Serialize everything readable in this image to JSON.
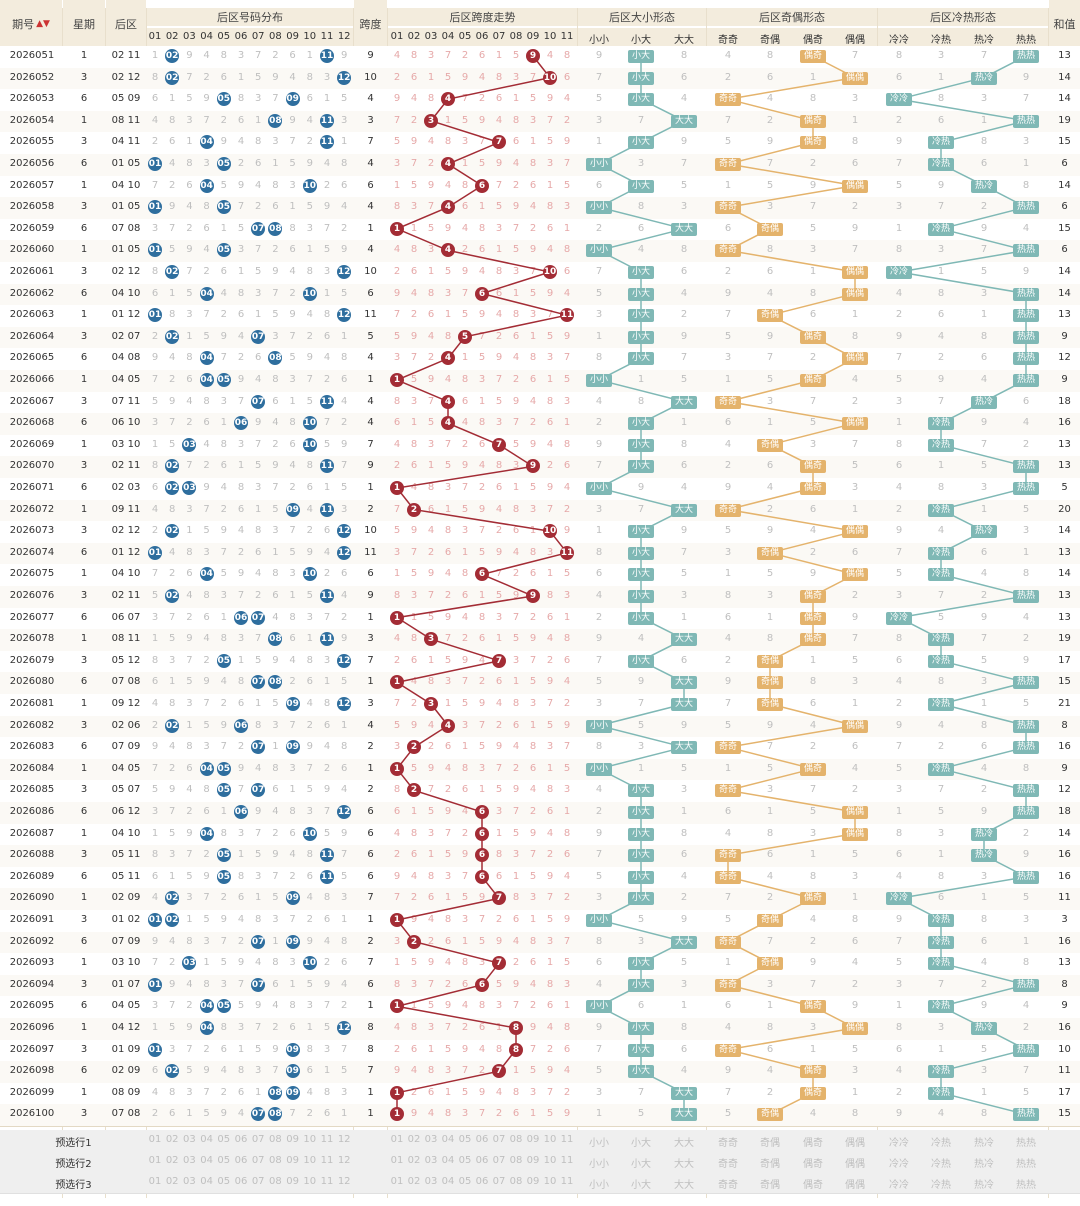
{
  "headers": {
    "issue": "期号",
    "week": "星期",
    "back": "后区",
    "dist": "后区号码分布",
    "span": "跨度",
    "spantrend": "后区跨度走势",
    "size": "后区大小形态",
    "oddeven": "后区奇偶形态",
    "coldhot": "后区冷热形态",
    "sum": "和值",
    "size_cols": [
      "小小",
      "小大",
      "大大"
    ],
    "oe_cols": [
      "奇奇",
      "奇偶",
      "偶奇",
      "偶偶"
    ],
    "ch_cols": [
      "冷冷",
      "冷热",
      "热冷",
      "热热"
    ],
    "num_cols": [
      "01",
      "02",
      "03",
      "04",
      "05",
      "06",
      "07",
      "08",
      "09",
      "10",
      "11",
      "12"
    ],
    "span_cols": [
      "01",
      "02",
      "03",
      "04",
      "05",
      "06",
      "07",
      "08",
      "09",
      "10",
      "11"
    ]
  },
  "chart_data": {
    "type": "table",
    "title": "",
    "rows": [
      {
        "issue": "2026051",
        "week": "1",
        "back": "02 11",
        "span": 9,
        "size": "小大",
        "oe": "偶奇",
        "ch": "热热",
        "sum": 13
      },
      {
        "issue": "2026052",
        "week": "3",
        "back": "02 12",
        "span": 10,
        "size": "小大",
        "oe": "偶偶",
        "ch": "热冷",
        "sum": 14
      },
      {
        "issue": "2026053",
        "week": "6",
        "back": "05 09",
        "span": 4,
        "size": "小大",
        "oe": "奇奇",
        "ch": "冷冷",
        "sum": 14
      },
      {
        "issue": "2026054",
        "week": "1",
        "back": "08 11",
        "span": 3,
        "size": "大大",
        "oe": "偶奇",
        "ch": "热热",
        "sum": 19
      },
      {
        "issue": "2026055",
        "week": "3",
        "back": "04 11",
        "span": 7,
        "size": "小大",
        "oe": "偶奇",
        "ch": "冷热",
        "sum": 15
      },
      {
        "issue": "2026056",
        "week": "6",
        "back": "01 05",
        "span": 4,
        "size": "小小",
        "oe": "奇奇",
        "ch": "冷热",
        "sum": 6
      },
      {
        "issue": "2026057",
        "week": "1",
        "back": "04 10",
        "span": 6,
        "size": "小大",
        "oe": "偶偶",
        "ch": "热冷",
        "sum": 14
      },
      {
        "issue": "2026058",
        "week": "3",
        "back": "01 05",
        "span": 4,
        "size": "小小",
        "oe": "奇奇",
        "ch": "热热",
        "sum": 6
      },
      {
        "issue": "2026059",
        "week": "6",
        "back": "07 08",
        "span": 1,
        "size": "大大",
        "oe": "奇偶",
        "ch": "冷热",
        "sum": 15
      },
      {
        "issue": "2026060",
        "week": "1",
        "back": "01 05",
        "span": 4,
        "size": "小小",
        "oe": "奇奇",
        "ch": "热热",
        "sum": 6
      },
      {
        "issue": "2026061",
        "week": "3",
        "back": "02 12",
        "span": 10,
        "size": "小大",
        "oe": "偶偶",
        "ch": "冷冷",
        "sum": 14
      },
      {
        "issue": "2026062",
        "week": "6",
        "back": "04 10",
        "span": 6,
        "size": "小大",
        "oe": "偶偶",
        "ch": "热热",
        "sum": 14
      },
      {
        "issue": "2026063",
        "week": "1",
        "back": "01 12",
        "span": 11,
        "size": "小大",
        "oe": "奇偶",
        "ch": "热热",
        "sum": 13
      },
      {
        "issue": "2026064",
        "week": "3",
        "back": "02 07",
        "span": 5,
        "size": "小大",
        "oe": "偶奇",
        "ch": "热热",
        "sum": 9
      },
      {
        "issue": "2026065",
        "week": "6",
        "back": "04 08",
        "span": 4,
        "size": "小大",
        "oe": "偶偶",
        "ch": "热热",
        "sum": 12
      },
      {
        "issue": "2026066",
        "week": "1",
        "back": "04 05",
        "span": 1,
        "size": "小小",
        "oe": "偶奇",
        "ch": "热热",
        "sum": 9
      },
      {
        "issue": "2026067",
        "week": "3",
        "back": "07 11",
        "span": 4,
        "size": "大大",
        "oe": "奇奇",
        "ch": "热冷",
        "sum": 18
      },
      {
        "issue": "2026068",
        "week": "6",
        "back": "06 10",
        "span": 4,
        "size": "小大",
        "oe": "偶偶",
        "ch": "冷热",
        "sum": 16
      },
      {
        "issue": "2026069",
        "week": "1",
        "back": "03 10",
        "span": 7,
        "size": "小大",
        "oe": "奇偶",
        "ch": "冷热",
        "sum": 13
      },
      {
        "issue": "2026070",
        "week": "3",
        "back": "02 11",
        "span": 9,
        "size": "小大",
        "oe": "偶奇",
        "ch": "热热",
        "sum": 13
      },
      {
        "issue": "2026071",
        "week": "6",
        "back": "02 03",
        "span": 1,
        "size": "小小",
        "oe": "偶奇",
        "ch": "热热",
        "sum": 5
      },
      {
        "issue": "2026072",
        "week": "1",
        "back": "09 11",
        "span": 2,
        "size": "大大",
        "oe": "奇奇",
        "ch": "冷热",
        "sum": 20
      },
      {
        "issue": "2026073",
        "week": "3",
        "back": "02 12",
        "span": 10,
        "size": "小大",
        "oe": "偶偶",
        "ch": "热冷",
        "sum": 14
      },
      {
        "issue": "2026074",
        "week": "6",
        "back": "01 12",
        "span": 11,
        "size": "小大",
        "oe": "奇偶",
        "ch": "冷热",
        "sum": 13
      },
      {
        "issue": "2026075",
        "week": "1",
        "back": "04 10",
        "span": 6,
        "size": "小大",
        "oe": "偶偶",
        "ch": "冷热",
        "sum": 14
      },
      {
        "issue": "2026076",
        "week": "3",
        "back": "02 11",
        "span": 9,
        "size": "小大",
        "oe": "偶奇",
        "ch": "热热",
        "sum": 13
      },
      {
        "issue": "2026077",
        "week": "6",
        "back": "06 07",
        "span": 1,
        "size": "小大",
        "oe": "偶奇",
        "ch": "冷冷",
        "sum": 13
      },
      {
        "issue": "2026078",
        "week": "1",
        "back": "08 11",
        "span": 3,
        "size": "大大",
        "oe": "偶奇",
        "ch": "冷热",
        "sum": 19
      },
      {
        "issue": "2026079",
        "week": "3",
        "back": "05 12",
        "span": 7,
        "size": "小大",
        "oe": "奇偶",
        "ch": "冷热",
        "sum": 17
      },
      {
        "issue": "2026080",
        "week": "6",
        "back": "07 08",
        "span": 1,
        "size": "大大",
        "oe": "奇偶",
        "ch": "热热",
        "sum": 15
      },
      {
        "issue": "2026081",
        "week": "1",
        "back": "09 12",
        "span": 3,
        "size": "大大",
        "oe": "奇偶",
        "ch": "冷热",
        "sum": 21
      },
      {
        "issue": "2026082",
        "week": "3",
        "back": "02 06",
        "span": 4,
        "size": "小小",
        "oe": "偶偶",
        "ch": "热热",
        "sum": 8
      },
      {
        "issue": "2026083",
        "week": "6",
        "back": "07 09",
        "span": 2,
        "size": "大大",
        "oe": "奇奇",
        "ch": "热热",
        "sum": 16
      },
      {
        "issue": "2026084",
        "week": "1",
        "back": "04 05",
        "span": 1,
        "size": "小小",
        "oe": "偶奇",
        "ch": "冷热",
        "sum": 9
      },
      {
        "issue": "2026085",
        "week": "3",
        "back": "05 07",
        "span": 2,
        "size": "小大",
        "oe": "奇奇",
        "ch": "热热",
        "sum": 12
      },
      {
        "issue": "2026086",
        "week": "6",
        "back": "06 12",
        "span": 6,
        "size": "小大",
        "oe": "偶偶",
        "ch": "热热",
        "sum": 18
      },
      {
        "issue": "2026087",
        "week": "1",
        "back": "04 10",
        "span": 6,
        "size": "小大",
        "oe": "偶偶",
        "ch": "热冷",
        "sum": 14
      },
      {
        "issue": "2026088",
        "week": "3",
        "back": "05 11",
        "span": 6,
        "size": "小大",
        "oe": "奇奇",
        "ch": "热冷",
        "sum": 16
      },
      {
        "issue": "2026089",
        "week": "6",
        "back": "05 11",
        "span": 6,
        "size": "小大",
        "oe": "奇奇",
        "ch": "热热",
        "sum": 16
      },
      {
        "issue": "2026090",
        "week": "1",
        "back": "02 09",
        "span": 7,
        "size": "小大",
        "oe": "偶奇",
        "ch": "冷冷",
        "sum": 11
      },
      {
        "issue": "2026091",
        "week": "3",
        "back": "01 02",
        "span": 1,
        "size": "小小",
        "oe": "奇偶",
        "ch": "冷热",
        "sum": 3
      },
      {
        "issue": "2026092",
        "week": "6",
        "back": "07 09",
        "span": 2,
        "size": "大大",
        "oe": "奇奇",
        "ch": "冷热",
        "sum": 16
      },
      {
        "issue": "2026093",
        "week": "1",
        "back": "03 10",
        "span": 7,
        "size": "小大",
        "oe": "奇偶",
        "ch": "冷热",
        "sum": 13
      },
      {
        "issue": "2026094",
        "week": "3",
        "back": "01 07",
        "span": 6,
        "size": "小大",
        "oe": "奇奇",
        "ch": "热热",
        "sum": 8
      },
      {
        "issue": "2026095",
        "week": "6",
        "back": "04 05",
        "span": 1,
        "size": "小小",
        "oe": "偶奇",
        "ch": "冷热",
        "sum": 9
      },
      {
        "issue": "2026096",
        "week": "1",
        "back": "04 12",
        "span": 8,
        "size": "小大",
        "oe": "偶偶",
        "ch": "热冷",
        "sum": 16
      },
      {
        "issue": "2026097",
        "week": "3",
        "back": "01 09",
        "span": 8,
        "size": "小大",
        "oe": "奇奇",
        "ch": "热热",
        "sum": 10
      },
      {
        "issue": "2026098",
        "week": "6",
        "back": "02 09",
        "span": 7,
        "size": "小大",
        "oe": "偶奇",
        "ch": "冷热",
        "sum": 11
      },
      {
        "issue": "2026099",
        "week": "1",
        "back": "08 09",
        "span": 1,
        "size": "大大",
        "oe": "偶奇",
        "ch": "冷热",
        "sum": 17
      },
      {
        "issue": "2026100",
        "week": "3",
        "back": "07 08",
        "span": 1,
        "size": "大大",
        "oe": "奇偶",
        "ch": "热热",
        "sum": 15
      }
    ]
  },
  "footer": {
    "labels": [
      "预选行1",
      "预选行2",
      "预选行3"
    ]
  },
  "colors": {
    "blue": "#2e6e9e",
    "red": "#a32c35",
    "teal": "#7fb8b5",
    "gold": "#e4b36c",
    "header": "#f3ecdd"
  }
}
